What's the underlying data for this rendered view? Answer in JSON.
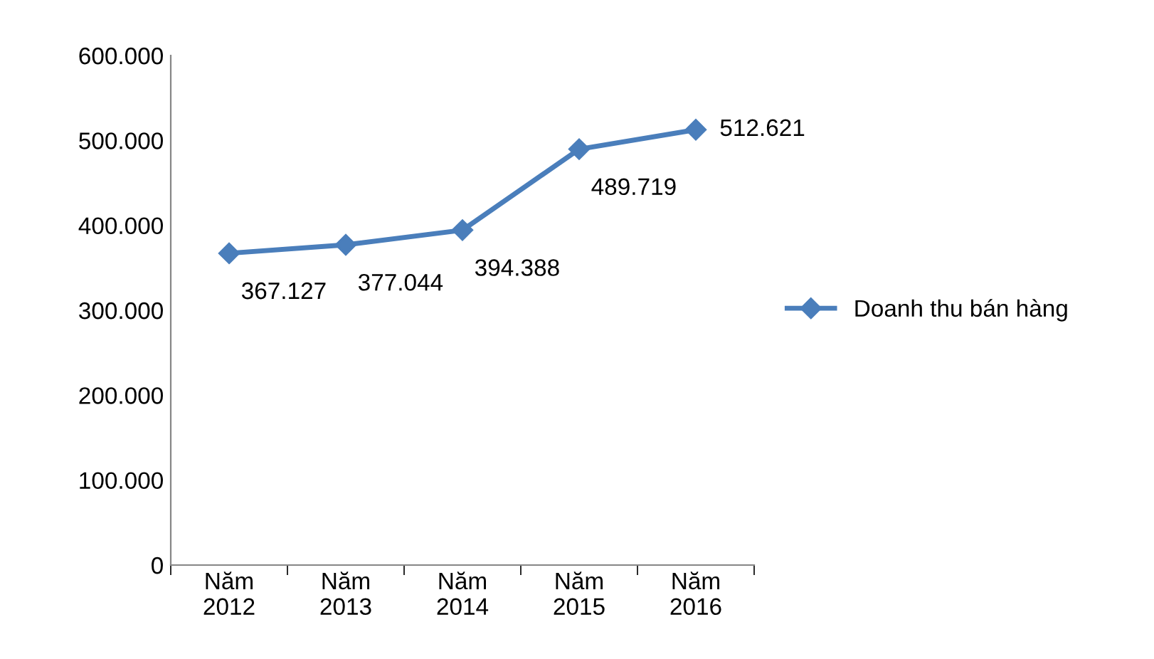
{
  "chart_data": {
    "type": "line",
    "categories": [
      "Năm\n2012",
      "Năm\n2013",
      "Năm\n2014",
      "Năm\n2015",
      "Năm\n2016"
    ],
    "series": [
      {
        "name": "Doanh thu bán hàng",
        "color": "#4a7ebb",
        "values": [
          367127,
          377044,
          394388,
          489719,
          512621
        ],
        "value_labels": [
          "367.127",
          "377.044",
          "394.388",
          "489.719",
          "512.621"
        ]
      }
    ],
    "ylim": [
      0,
      600000
    ],
    "yticks": [
      0,
      {
        "value": 100000,
        "label": "100.000"
      },
      {
        "value": 200000,
        "label": "200.000"
      },
      {
        "value": 300000,
        "label": "300.000"
      },
      {
        "value": 400000,
        "label": "400.000"
      },
      {
        "value": 500000,
        "label": "500.000"
      },
      {
        "value": 600000,
        "label": "600.000"
      }
    ],
    "marker": "diamond",
    "line_style": "solid",
    "grid": false,
    "legend": "right"
  }
}
